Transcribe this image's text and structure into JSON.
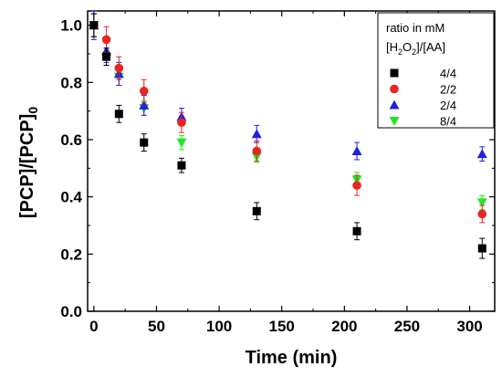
{
  "chart_data": {
    "type": "scatter",
    "xlabel": "Time (min)",
    "ylabel_parts": {
      "a": "[PCP]/[PCP]",
      "sub": "0"
    },
    "xlim": [
      -5,
      320
    ],
    "ylim": [
      0.0,
      1.05
    ],
    "x_ticks": [
      0,
      50,
      100,
      150,
      200,
      250,
      300
    ],
    "y_ticks": [
      0.0,
      0.2,
      0.4,
      0.6,
      0.8,
      1.0
    ],
    "x_tick_labels": [
      "0",
      "50",
      "100",
      "150",
      "200",
      "250",
      "300"
    ],
    "y_tick_labels": [
      "0.0",
      "0.2",
      "0.4",
      "0.6",
      "0.8",
      "1.0"
    ],
    "legend": {
      "title_line1": "ratio in mM",
      "title_line2_parts": {
        "a": "[H",
        "sub1": "2",
        "b": "O",
        "sub2": "2",
        "c": "]/[AA]"
      },
      "position": "top-right"
    },
    "series": [
      {
        "name": "4/4",
        "marker": "square",
        "color": "#000000",
        "x": [
          0,
          10,
          20,
          40,
          70,
          130,
          210,
          310
        ],
        "y": [
          1.0,
          0.89,
          0.69,
          0.59,
          0.51,
          0.35,
          0.28,
          0.22
        ],
        "err": [
          0.04,
          0.03,
          0.03,
          0.03,
          0.025,
          0.03,
          0.03,
          0.035
        ]
      },
      {
        "name": "2/2",
        "marker": "circle",
        "color": "#e8251f",
        "x": [
          0,
          10,
          20,
          40,
          70,
          130,
          210,
          310
        ],
        "y": [
          1.0,
          0.95,
          0.85,
          0.77,
          0.66,
          0.56,
          0.44,
          0.34
        ],
        "err": [
          0.04,
          0.045,
          0.04,
          0.04,
          0.035,
          0.035,
          0.035,
          0.03
        ]
      },
      {
        "name": "2/4",
        "marker": "triangle-up",
        "color": "#2020e6",
        "x": [
          0,
          10,
          20,
          40,
          70,
          130,
          210,
          310
        ],
        "y": [
          1.0,
          0.91,
          0.83,
          0.72,
          0.68,
          0.62,
          0.56,
          0.55
        ],
        "err": [
          0.05,
          0.04,
          0.04,
          0.035,
          0.03,
          0.03,
          0.03,
          0.025
        ]
      },
      {
        "name": "8/4",
        "marker": "triangle-down",
        "color": "#22e622",
        "x": [
          0,
          10,
          20,
          40,
          70,
          130,
          210,
          310
        ],
        "y": [
          1.0,
          0.89,
          0.82,
          0.71,
          0.59,
          0.54,
          0.46,
          0.38
        ],
        "err": [
          0.04,
          0.03,
          0.03,
          0.025,
          0.025,
          0.02,
          0.025,
          0.025
        ]
      }
    ]
  }
}
